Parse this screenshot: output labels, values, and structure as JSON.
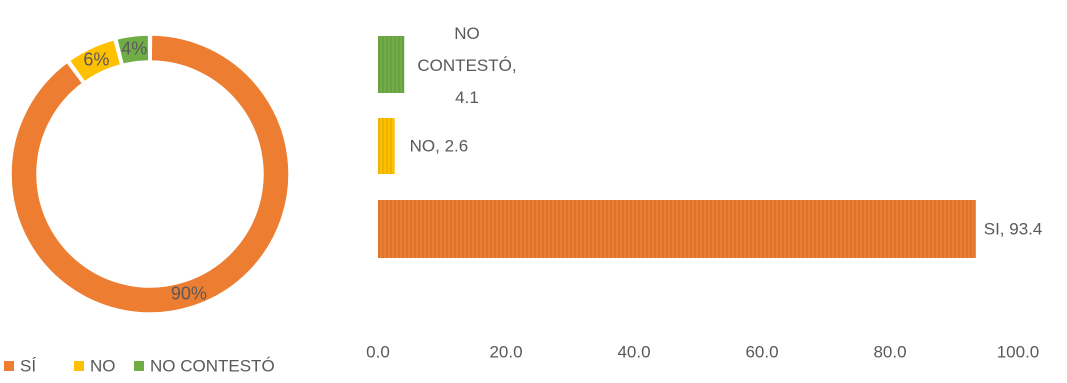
{
  "chart_data": [
    {
      "type": "pie",
      "variant": "doughnut",
      "categories": [
        "SÍ",
        "NO",
        "NO CONTESTÓ"
      ],
      "values": [
        90,
        6,
        4
      ],
      "data_labels": [
        "90%",
        "6%",
        "4%"
      ],
      "colors": [
        "#ED7D31",
        "#FFC000",
        "#70AD47"
      ],
      "legend": {
        "position": "bottom-left",
        "entries": [
          "SÍ",
          "NO",
          "NO CONTESTÓ"
        ]
      }
    },
    {
      "type": "bar",
      "orientation": "horizontal",
      "categories": [
        "SI",
        "NO",
        "NO CONTESTÓ"
      ],
      "values": [
        93.4,
        2.6,
        4.1
      ],
      "data_labels": [
        "SI, 93.4",
        "NO, 2.6",
        "NO CONTESTÓ, 4.1"
      ],
      "colors": [
        "#ED7D31",
        "#FFC000",
        "#70AD47"
      ],
      "xlim": [
        0,
        100
      ],
      "xticks": [
        "0.0",
        "20.0",
        "40.0",
        "60.0",
        "80.0",
        "100.0"
      ],
      "grid": false,
      "pattern": "vertical-stripes"
    }
  ]
}
